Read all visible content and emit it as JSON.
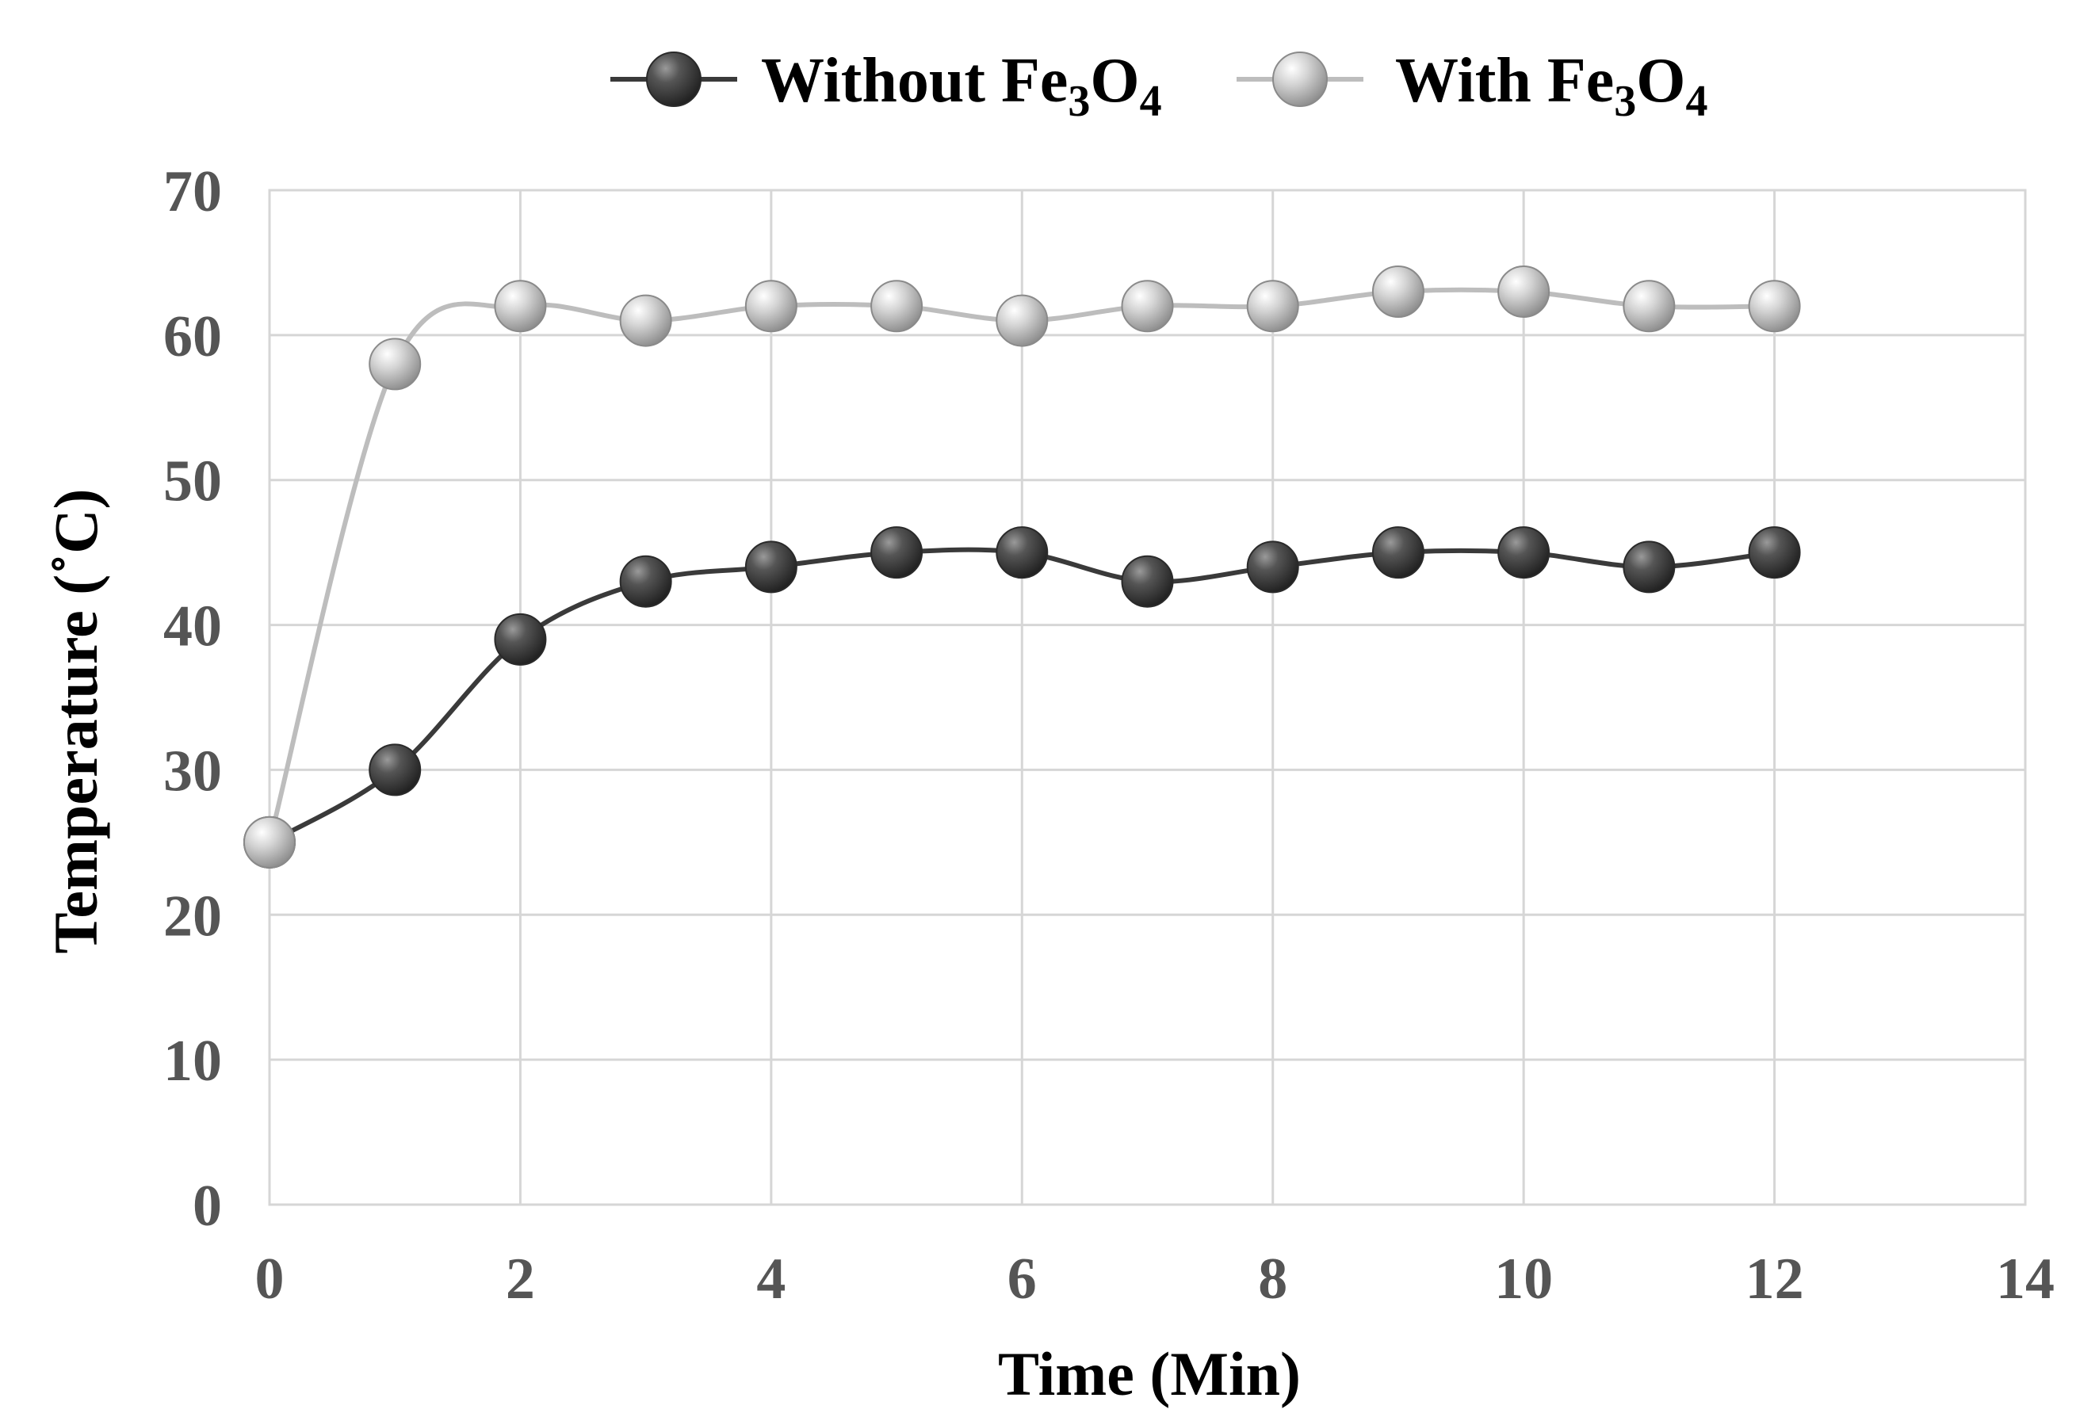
{
  "chart_data": {
    "type": "line",
    "xlabel": "Time (Min)",
    "ylabel": "Temperature (˚C)",
    "xlim": [
      0,
      14
    ],
    "ylim": [
      0,
      70
    ],
    "xticks": [
      "0",
      "2",
      "4",
      "6",
      "8",
      "10",
      "12",
      "14"
    ],
    "yticks": [
      "0",
      "10",
      "20",
      "30",
      "40",
      "50",
      "60",
      "70"
    ],
    "grid": true,
    "legend_position": "top-center",
    "x": [
      0,
      1,
      2,
      3,
      4,
      5,
      6,
      7,
      8,
      9,
      10,
      11,
      12
    ],
    "series": [
      {
        "name": "Without Fe3O4",
        "legend": {
          "base": "Without Fe",
          "sub1": "3",
          "mid": "O",
          "sub2": "4"
        },
        "color": "#3a3a3a",
        "values": [
          25,
          30,
          39,
          43,
          44,
          45,
          45,
          43,
          44,
          45,
          45,
          44,
          45
        ]
      },
      {
        "name": "With Fe3O4",
        "legend": {
          "base": "With Fe",
          "sub1": "3",
          "mid": "O",
          "sub2": "4"
        },
        "color": "#bdbdbd",
        "values": [
          25,
          58,
          62,
          61,
          62,
          62,
          61,
          62,
          62,
          63,
          63,
          62,
          62
        ]
      }
    ]
  }
}
